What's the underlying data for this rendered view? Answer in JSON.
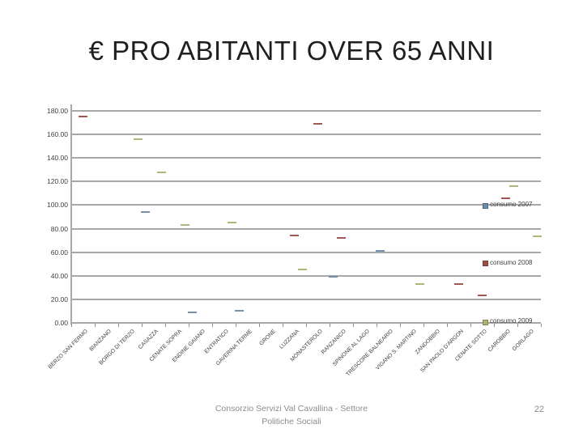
{
  "slide": {
    "title": "€ PRO ABITANTI OVER 65 ANNI",
    "footer_line1": "Consorzio Servizi Val Cavallina - Settore",
    "footer_line2": "Politiche Sociali",
    "page_number": "22"
  },
  "colors": {
    "grid": "#a8a8a8",
    "axis_text": "#3d3d3d",
    "title_text": "#1f1f1f",
    "footer_text": "#8c8c8c",
    "serie_2007": "#6c8cab",
    "serie_2008": "#9a4f49",
    "serie_2009": "#aeb173"
  },
  "chart_data": {
    "type": "scatter",
    "title": "€ PRO ABITANTI OVER 65 ANNI",
    "marker_style": "dash",
    "grid": true,
    "legend_position": "right",
    "ylim": [
      0,
      180
    ],
    "ytick_step": 20,
    "ytick_labels": [
      "180.00",
      "160.00",
      "140.00",
      "120.00",
      "100.00",
      "80.00",
      "60.00",
      "40.00",
      "20.00",
      "0.00"
    ],
    "categories": [
      "BERZO SAN FERMO",
      "BIANZANO",
      "BORGO DI TERZO",
      "CASAZZA",
      "CENATE SOPRA",
      "ENDINE GAIANO",
      "ENTRATICO",
      "GAVERINA TERME",
      "GRONE",
      "LUZZANA",
      "MONASTEROLO",
      "RANZANICO",
      "SPINONE AL LAGO",
      "TRESCORE BALNEARIO",
      "VIGANO S. MARTINO",
      "ZANDOBBIO",
      "SAN PAOLO D'ARGON",
      "CENATE SOTTO",
      "CAROBBIO",
      "GORLAGO"
    ],
    "series": [
      {
        "name": "consumo 2007",
        "color": "#6c8cab",
        "points": [
          {
            "category": "CASAZZA",
            "value": 94
          },
          {
            "category": "ENDINE GAIANO",
            "value": 9
          },
          {
            "category": "GAVERINA TERME",
            "value": 10.5
          },
          {
            "category": "RANZANICO",
            "value": 39
          },
          {
            "category": "TRESCORE BALNEARIO",
            "value": 61
          }
        ]
      },
      {
        "name": "consumo 2008",
        "color": "#9a4f49",
        "points": [
          {
            "category": "BERZO SAN FERMO",
            "value": 175.5
          },
          {
            "category": "LUZZANA",
            "value": 74
          },
          {
            "category": "MONASTEROLO",
            "value": 169
          },
          {
            "category": "RANZANICO",
            "value": 72
          },
          {
            "category": "SAN PAOLO D'ARGON",
            "value": 33
          },
          {
            "category": "CENATE SOTTO",
            "value": 23.5
          },
          {
            "category": "CAROBBIO",
            "value": 106
          }
        ]
      },
      {
        "name": "consumo 2009",
        "color": "#aeb173",
        "points": [
          {
            "category": "BORGO DI TERZO",
            "value": 156
          },
          {
            "category": "CASAZZA",
            "value": 128
          },
          {
            "category": "CENATE SOPRA",
            "value": 83
          },
          {
            "category": "ENTRATICO",
            "value": 85
          },
          {
            "category": "LUZZANA",
            "value": 45.5
          },
          {
            "category": "VIGANO S. MARTINO",
            "value": 33
          },
          {
            "category": "CAROBBIO",
            "value": 116
          },
          {
            "category": "GORLAGO",
            "value": 73.5
          }
        ]
      }
    ]
  }
}
